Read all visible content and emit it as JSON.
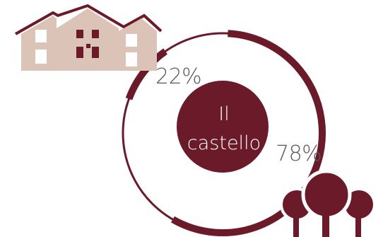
{
  "center": {
    "line1": "Il",
    "line2": "castello"
  },
  "values": {
    "left_pct": "22%",
    "right_pct": "78%"
  },
  "chart_data": {
    "type": "pie",
    "categories": [
      "houses",
      "trees"
    ],
    "values": [
      22,
      78
    ]
  },
  "colors": {
    "wine": "#6b1a2a",
    "house_beige": "#dcc3b8",
    "text_gray": "#5a5a5a"
  },
  "icons": [
    "houses-icon",
    "trees-icon"
  ]
}
